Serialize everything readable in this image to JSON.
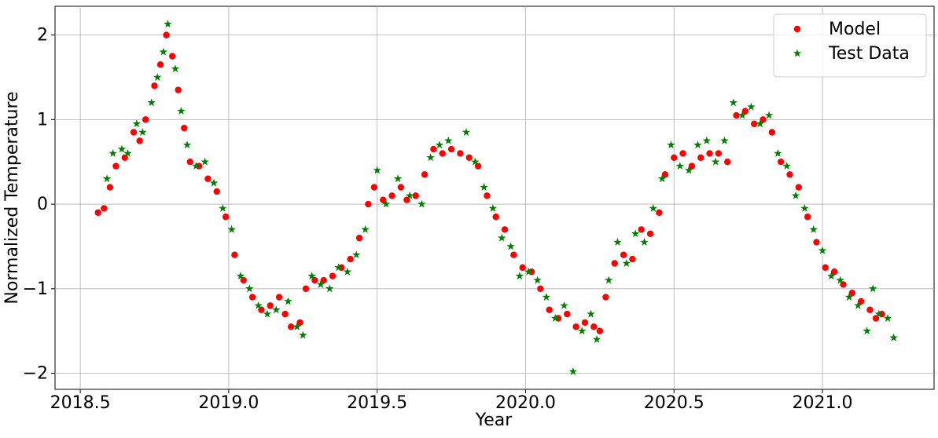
{
  "chart_data": {
    "type": "scatter",
    "x_label": "Year",
    "y_label": "Normalized Temperature",
    "xlim": [
      2018.415,
      2021.376
    ],
    "ylim": [
      -2.19,
      2.34
    ],
    "xticks": [
      {
        "value": 2018.5,
        "label": "2018.5"
      },
      {
        "value": 2019.0,
        "label": "2019.0"
      },
      {
        "value": 2019.5,
        "label": "2019.5"
      },
      {
        "value": 2020.0,
        "label": "2020.0"
      },
      {
        "value": 2020.5,
        "label": "2020.5"
      },
      {
        "value": 2021.0,
        "label": "2021.0"
      }
    ],
    "yticks": [
      {
        "value": -2,
        "label": "−2"
      },
      {
        "value": -1,
        "label": "−1"
      },
      0,
      1,
      2
    ],
    "grid": true,
    "legend": "upper right",
    "series": [
      {
        "name": "Model",
        "color": "#ff0000",
        "marker": "circle",
        "x": [
          2018.56,
          2018.58,
          2018.6,
          2018.62,
          2018.65,
          2018.68,
          2018.7,
          2018.72,
          2018.75,
          2018.77,
          2018.79,
          2018.81,
          2018.83,
          2018.85,
          2018.87,
          2018.9,
          2018.93,
          2018.96,
          2018.99,
          2019.02,
          2019.05,
          2019.08,
          2019.11,
          2019.14,
          2019.17,
          2019.19,
          2019.21,
          2019.24,
          2019.26,
          2019.29,
          2019.32,
          2019.35,
          2019.38,
          2019.41,
          2019.44,
          2019.47,
          2019.49,
          2019.52,
          2019.55,
          2019.58,
          2019.6,
          2019.63,
          2019.66,
          2019.69,
          2019.72,
          2019.75,
          2019.78,
          2019.81,
          2019.84,
          2019.87,
          2019.9,
          2019.93,
          2019.96,
          2019.99,
          2020.02,
          2020.05,
          2020.08,
          2020.11,
          2020.14,
          2020.17,
          2020.2,
          2020.23,
          2020.25,
          2020.27,
          2020.3,
          2020.33,
          2020.36,
          2020.39,
          2020.42,
          2020.45,
          2020.47,
          2020.5,
          2020.53,
          2020.56,
          2020.59,
          2020.62,
          2020.65,
          2020.68,
          2020.71,
          2020.74,
          2020.77,
          2020.8,
          2020.83,
          2020.86,
          2020.89,
          2020.92,
          2020.95,
          2020.98,
          2021.01,
          2021.04,
          2021.07,
          2021.1,
          2021.13,
          2021.16,
          2021.18,
          2021.2
        ],
        "values": [
          -0.1,
          -0.05,
          0.2,
          0.45,
          0.55,
          0.85,
          0.75,
          1.0,
          1.4,
          1.65,
          2.0,
          1.75,
          1.35,
          0.9,
          0.5,
          0.45,
          0.3,
          0.15,
          -0.15,
          -0.6,
          -0.9,
          -1.1,
          -1.25,
          -1.2,
          -1.1,
          -1.3,
          -1.45,
          -1.4,
          -1.0,
          -0.9,
          -0.9,
          -0.85,
          -0.75,
          -0.65,
          -0.4,
          0.0,
          0.2,
          0.05,
          0.1,
          0.2,
          0.05,
          0.1,
          0.35,
          0.65,
          0.6,
          0.65,
          0.6,
          0.55,
          0.45,
          0.1,
          -0.15,
          -0.3,
          -0.6,
          -0.75,
          -0.8,
          -1.0,
          -1.25,
          -1.35,
          -1.3,
          -1.45,
          -1.4,
          -1.45,
          -1.5,
          -1.1,
          -0.7,
          -0.6,
          -0.65,
          -0.3,
          -0.35,
          -0.1,
          0.35,
          0.55,
          0.6,
          0.45,
          0.55,
          0.6,
          0.6,
          0.5,
          1.05,
          1.1,
          0.95,
          1.0,
          0.85,
          0.5,
          0.35,
          0.2,
          -0.15,
          -0.45,
          -0.75,
          -0.8,
          -0.95,
          -1.05,
          -1.15,
          -1.25,
          -1.35,
          -1.3
        ]
      },
      {
        "name": "Test Data",
        "color": "#008000",
        "marker": "star",
        "x": [
          2018.59,
          2018.61,
          2018.64,
          2018.66,
          2018.69,
          2018.71,
          2018.74,
          2018.76,
          2018.78,
          2018.795,
          2018.82,
          2018.84,
          2018.86,
          2018.89,
          2018.92,
          2018.95,
          2018.98,
          2019.01,
          2019.04,
          2019.07,
          2019.1,
          2019.13,
          2019.16,
          2019.2,
          2019.23,
          2019.25,
          2019.28,
          2019.31,
          2019.34,
          2019.37,
          2019.4,
          2019.43,
          2019.46,
          2019.5,
          2019.53,
          2019.57,
          2019.61,
          2019.65,
          2019.68,
          2019.71,
          2019.74,
          2019.8,
          2019.83,
          2019.86,
          2019.89,
          2019.92,
          2019.95,
          2019.98,
          2020.01,
          2020.04,
          2020.07,
          2020.1,
          2020.13,
          2020.16,
          2020.19,
          2020.22,
          2020.24,
          2020.28,
          2020.31,
          2020.34,
          2020.37,
          2020.4,
          2020.43,
          2020.46,
          2020.49,
          2020.52,
          2020.55,
          2020.58,
          2020.61,
          2020.64,
          2020.67,
          2020.7,
          2020.73,
          2020.76,
          2020.79,
          2020.82,
          2020.85,
          2020.88,
          2020.91,
          2020.94,
          2020.97,
          2021.0,
          2021.03,
          2021.06,
          2021.09,
          2021.12,
          2021.15,
          2021.17,
          2021.19,
          2021.22,
          2021.24
        ],
        "values": [
          0.3,
          0.6,
          0.65,
          0.6,
          0.95,
          0.85,
          1.2,
          1.5,
          1.8,
          2.13,
          1.6,
          1.1,
          0.7,
          0.45,
          0.5,
          0.25,
          -0.05,
          -0.3,
          -0.85,
          -1.0,
          -1.2,
          -1.3,
          -1.25,
          -1.15,
          -1.45,
          -1.55,
          -0.85,
          -0.95,
          -1.0,
          -0.75,
          -0.8,
          -0.6,
          -0.3,
          0.4,
          0.0,
          0.3,
          0.1,
          0.0,
          0.55,
          0.7,
          0.75,
          0.85,
          0.5,
          0.2,
          -0.05,
          -0.4,
          -0.5,
          -0.85,
          -0.8,
          -0.9,
          -1.1,
          -1.35,
          -1.2,
          -1.98,
          -1.5,
          -1.3,
          -1.6,
          -0.9,
          -0.45,
          -0.7,
          -0.35,
          -0.45,
          -0.05,
          0.3,
          0.7,
          0.45,
          0.4,
          0.7,
          0.75,
          0.5,
          0.75,
          1.2,
          1.05,
          1.15,
          0.95,
          1.05,
          0.6,
          0.45,
          0.1,
          -0.05,
          -0.3,
          -0.55,
          -0.85,
          -0.9,
          -1.1,
          -1.2,
          -1.5,
          -1.0,
          -1.3,
          -1.35,
          -1.58
        ]
      }
    ]
  }
}
